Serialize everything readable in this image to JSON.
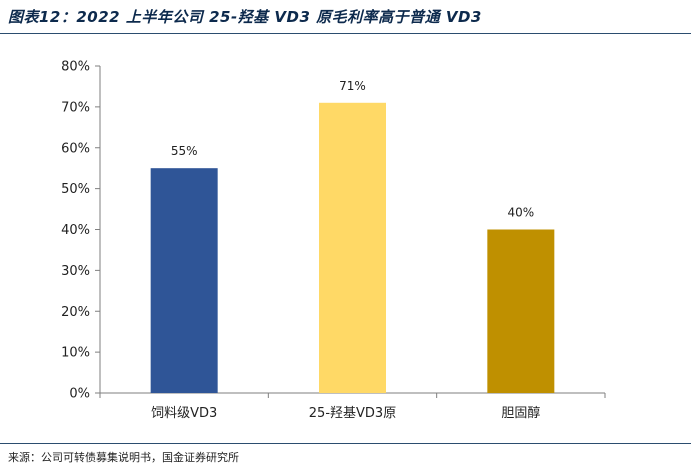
{
  "header": {
    "title": "图表12：2022 上半年公司 25-羟基 VD3 原毛利率高于普通 VD3"
  },
  "footer": {
    "source": "来源：公司可转债募集说明书，国金证券研究所"
  },
  "colors": {
    "bars": [
      "#2f5597",
      "#ffd966",
      "#bf9000"
    ],
    "axis": "#7f7f7f",
    "rule": "#2b4d6f"
  },
  "chart_data": {
    "type": "bar",
    "categories": [
      "饲料级VD3",
      "25-羟基VD3原",
      "胆固醇"
    ],
    "values": [
      55,
      71,
      40
    ],
    "data_labels": [
      "55%",
      "71%",
      "40%"
    ],
    "y_ticks": [
      "0%",
      "10%",
      "20%",
      "30%",
      "40%",
      "50%",
      "60%",
      "70%",
      "80%"
    ],
    "ylim": [
      0,
      80
    ],
    "y_unit": "%",
    "grid": false,
    "legend": "none",
    "title": "",
    "xlabel": "",
    "ylabel": ""
  }
}
